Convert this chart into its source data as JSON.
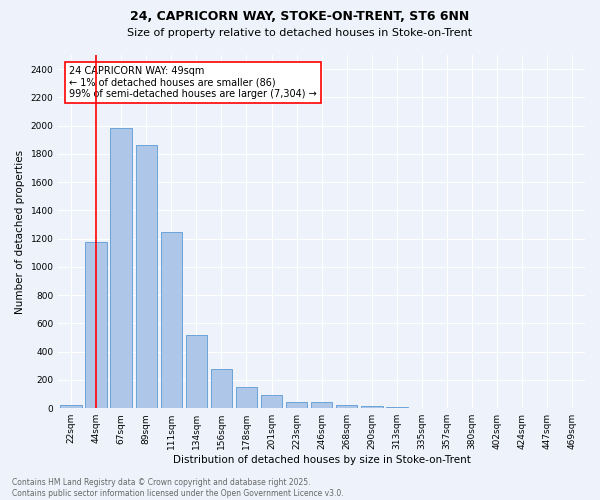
{
  "title1": "24, CAPRICORN WAY, STOKE-ON-TRENT, ST6 6NN",
  "title2": "Size of property relative to detached houses in Stoke-on-Trent",
  "xlabel": "Distribution of detached houses by size in Stoke-on-Trent",
  "ylabel": "Number of detached properties",
  "bar_labels": [
    "22sqm",
    "44sqm",
    "67sqm",
    "89sqm",
    "111sqm",
    "134sqm",
    "156sqm",
    "178sqm",
    "201sqm",
    "223sqm",
    "246sqm",
    "268sqm",
    "290sqm",
    "313sqm",
    "335sqm",
    "357sqm",
    "380sqm",
    "402sqm",
    "424sqm",
    "447sqm",
    "469sqm"
  ],
  "bar_values": [
    25,
    1175,
    1980,
    1860,
    1245,
    520,
    275,
    150,
    90,
    45,
    45,
    20,
    15,
    10,
    5,
    3,
    2,
    2,
    1,
    1,
    5
  ],
  "bar_color": "#aec6e8",
  "bar_edge_color": "#5b9bd5",
  "vline_x": 1,
  "vline_color": "red",
  "annotation_text": "24 CAPRICORN WAY: 49sqm\n← 1% of detached houses are smaller (86)\n99% of semi-detached houses are larger (7,304) →",
  "annotation_box_color": "white",
  "annotation_box_edgecolor": "red",
  "ylim": [
    0,
    2500
  ],
  "yticks": [
    0,
    200,
    400,
    600,
    800,
    1000,
    1200,
    1400,
    1600,
    1800,
    2000,
    2200,
    2400
  ],
  "footer1": "Contains HM Land Registry data © Crown copyright and database right 2025.",
  "footer2": "Contains public sector information licensed under the Open Government Licence v3.0.",
  "bg_color": "#eef3fb",
  "grid_color": "white",
  "title1_fontsize": 9,
  "title2_fontsize": 8,
  "axis_fontsize": 7.5,
  "tick_fontsize": 6.5,
  "footer_fontsize": 5.5,
  "annotation_fontsize": 7
}
